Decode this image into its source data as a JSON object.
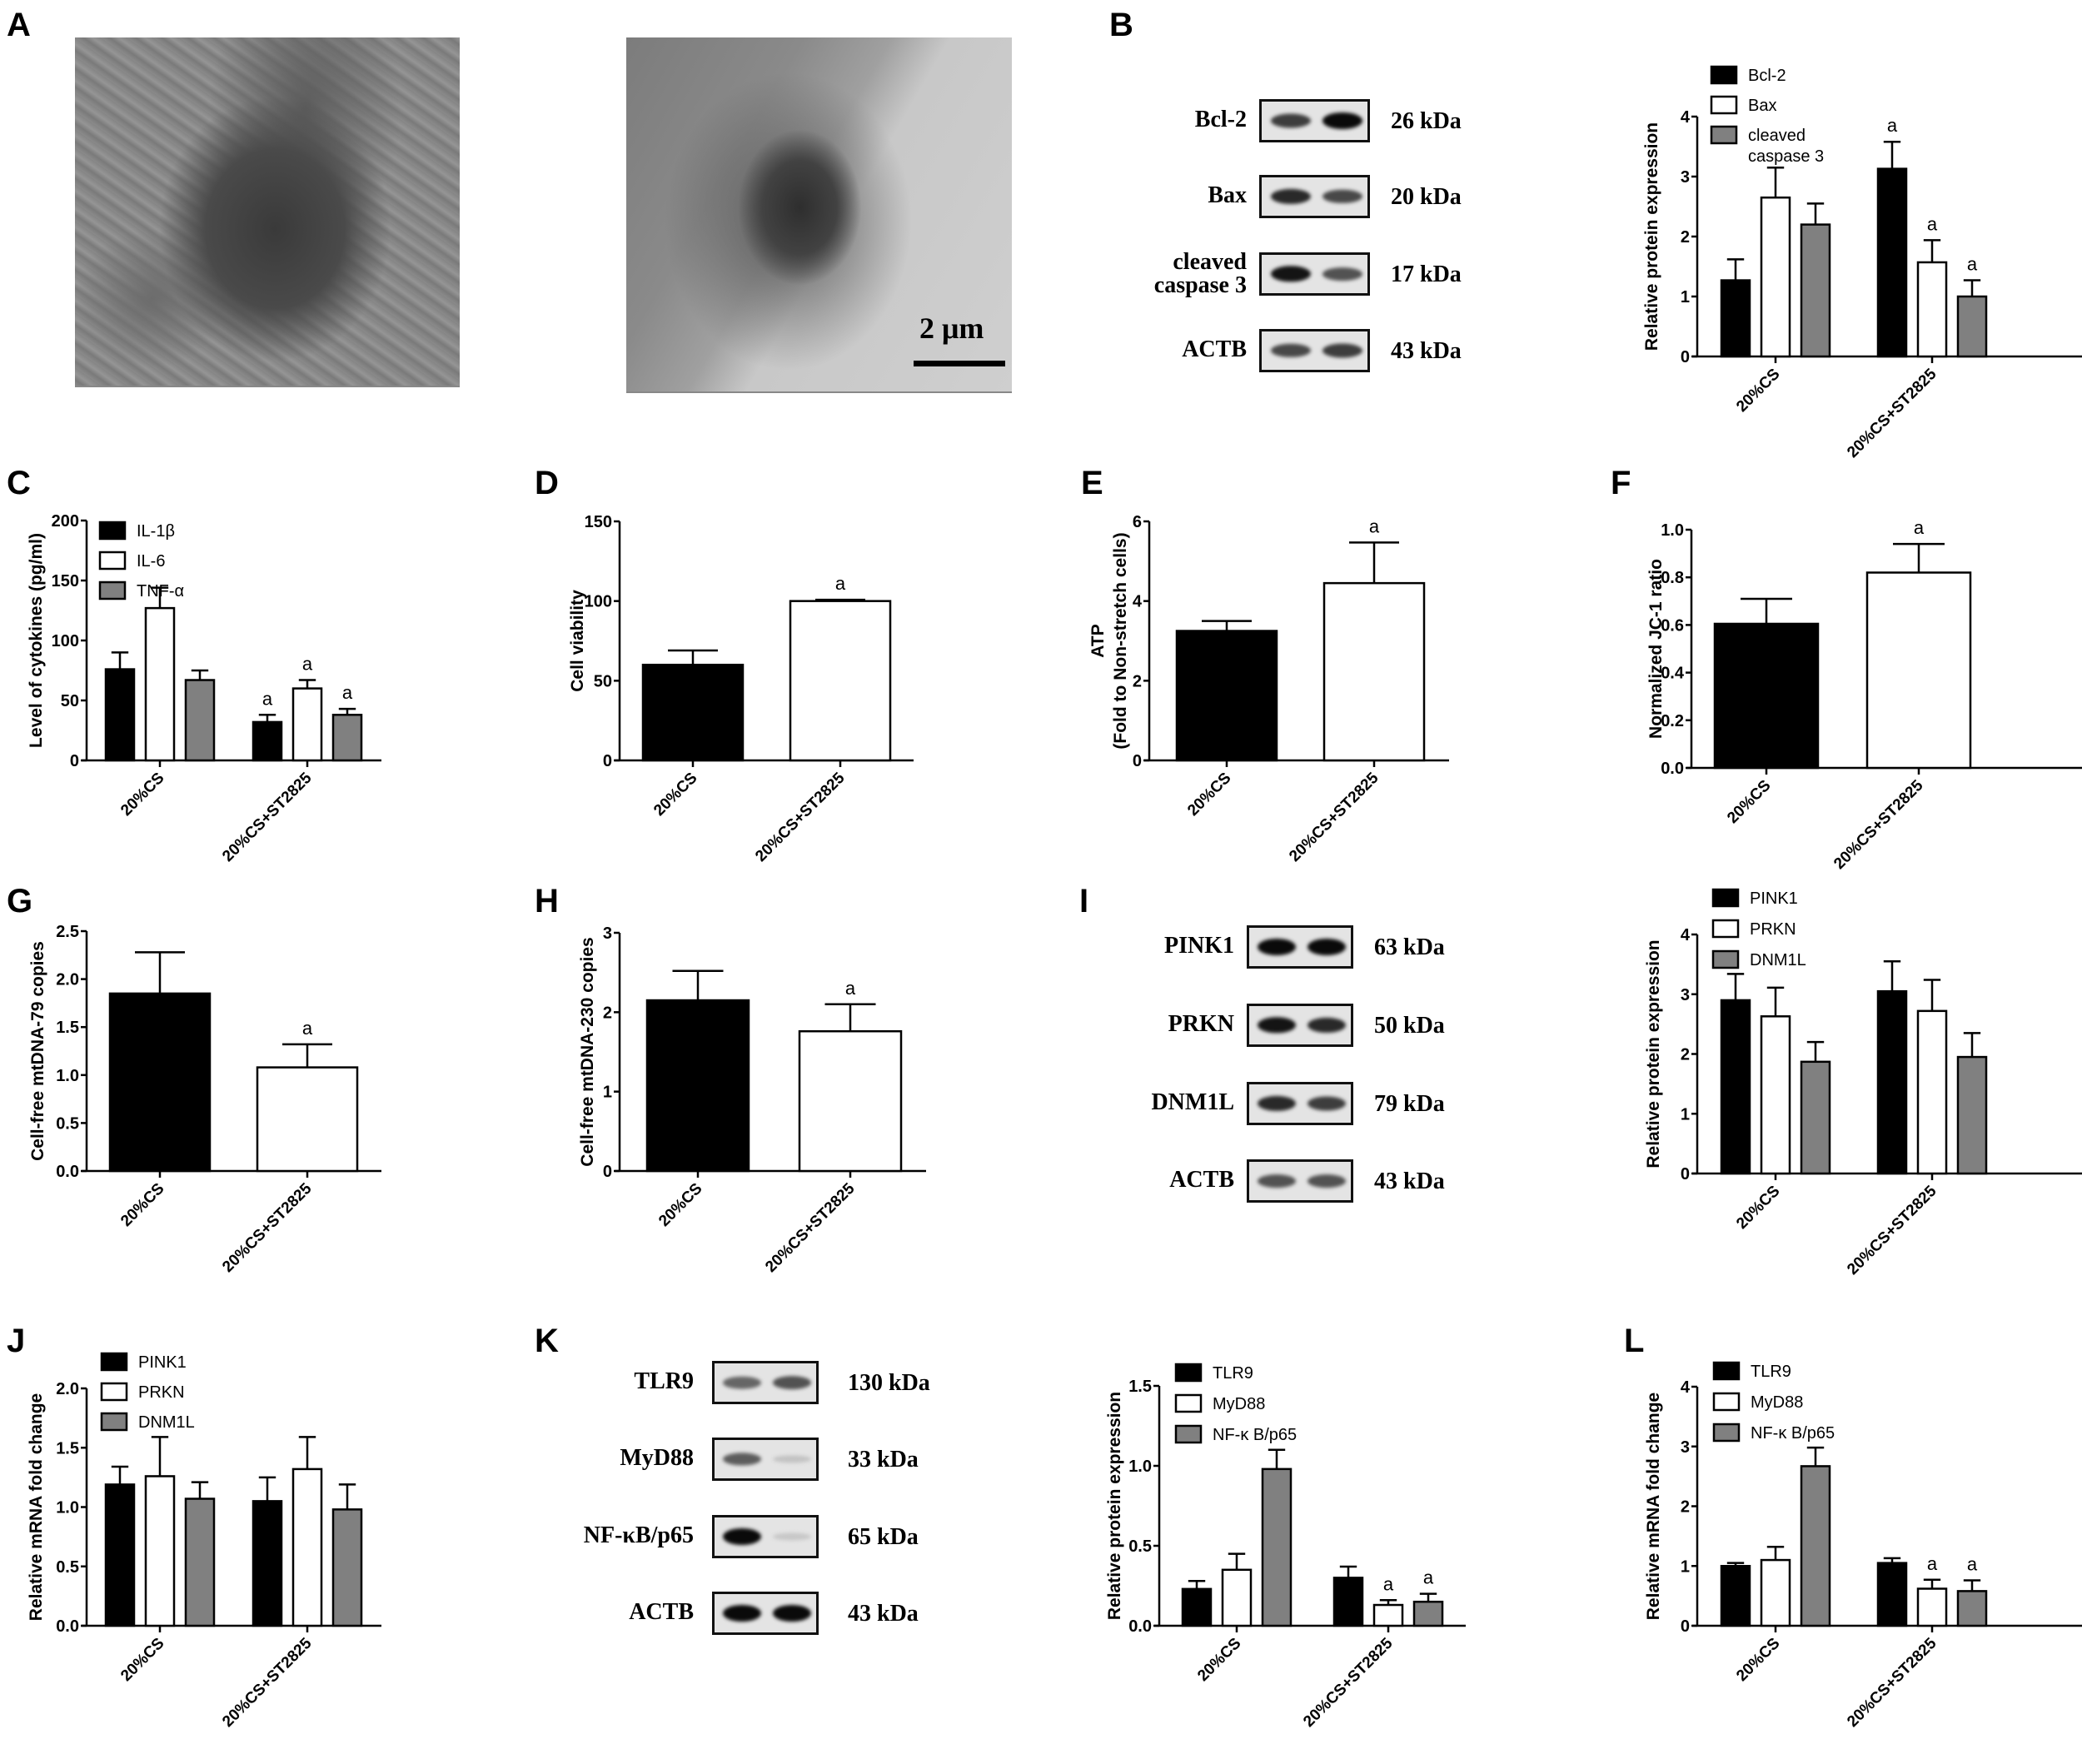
{
  "figure": {
    "panel_letters": [
      "A",
      "B",
      "C",
      "D",
      "E",
      "F",
      "G",
      "H",
      "I",
      "J",
      "K",
      "L"
    ]
  },
  "panel_a": {
    "letter": "A",
    "images": [
      {
        "name": "tem-20cs",
        "description": "Transmission electron micrograph, 20%CS group"
      },
      {
        "name": "tem-20cs-st2825",
        "description": "Transmission electron micrograph, 20%CS+ST2825 group"
      }
    ],
    "scale_bar": "2 μm"
  },
  "panel_b_blot": {
    "letter": "B",
    "rows": [
      {
        "label": "Bcl-2",
        "kda": "26 kDa",
        "bands": [
          0.75,
          1.0
        ]
      },
      {
        "label": "Bax",
        "kda": "20 kDa",
        "bands": [
          0.85,
          0.7
        ]
      },
      {
        "label": "cleaved caspase 3",
        "kda": "17 kDa",
        "bands": [
          0.95,
          0.65
        ]
      },
      {
        "label": "ACTB",
        "kda": "43 kDa",
        "bands": [
          0.7,
          0.75
        ]
      }
    ]
  },
  "panel_i_blot": {
    "letter": "I",
    "rows": [
      {
        "label": "PINK1",
        "kda": "63 kDa",
        "bands": [
          1.0,
          1.0
        ]
      },
      {
        "label": "PRKN",
        "kda": "50 kDa",
        "bands": [
          0.95,
          0.85
        ]
      },
      {
        "label": "DNM1L",
        "kda": "79 kDa",
        "bands": [
          0.85,
          0.75
        ]
      },
      {
        "label": "ACTB",
        "kda": "43 kDa",
        "bands": [
          0.65,
          0.65
        ]
      }
    ]
  },
  "panel_k_blot": {
    "letter": "K",
    "rows": [
      {
        "label": "TLR9",
        "kda": "130 kDa",
        "bands": [
          0.55,
          0.65
        ]
      },
      {
        "label": "MyD88",
        "kda": "33 kDa",
        "bands": [
          0.6,
          0.1
        ]
      },
      {
        "label": "NF-κB/p65",
        "kda": "65 kDa",
        "bands": [
          1.0,
          0.08
        ]
      },
      {
        "label": "ACTB",
        "kda": "43 kDa",
        "bands": [
          1.0,
          1.0
        ]
      }
    ]
  },
  "colors": {
    "series_black": "#000000",
    "series_white": "#ffffff",
    "series_gray": "#808080",
    "axis": "#000000"
  },
  "chart_data": [
    {
      "id": "B",
      "type": "bar",
      "title": "",
      "categories": [
        "20%CS",
        "20%CS+ST2825"
      ],
      "ylabel": "Relative protein expression",
      "xlabel": "",
      "ylim": [
        0,
        4
      ],
      "yticks": [
        "0",
        "1",
        "2",
        "3",
        "4"
      ],
      "ytick_values": [
        0,
        1,
        2,
        3,
        4
      ],
      "grid": false,
      "legend_position": "top-left",
      "series": [
        {
          "name": "Bcl-2",
          "fill": "black",
          "values": [
            1.27,
            3.13
          ],
          "errors": [
            0.35,
            0.45
          ],
          "sig": [
            "",
            "a"
          ]
        },
        {
          "name": "Bax",
          "fill": "white",
          "values": [
            2.65,
            1.57
          ],
          "errors": [
            0.5,
            0.37
          ],
          "sig": [
            "",
            "a"
          ]
        },
        {
          "name": "cleaved caspase 3",
          "fill": "gray",
          "values": [
            2.2,
            1.0
          ],
          "errors": [
            0.35,
            0.27
          ],
          "sig": [
            "",
            "a"
          ]
        }
      ]
    },
    {
      "id": "C",
      "type": "bar",
      "title": "",
      "categories": [
        "20%CS",
        "20%CS+ST2825"
      ],
      "ylabel": "Level of cytokines (pg/ml)",
      "xlabel": "",
      "ylim": [
        0,
        200
      ],
      "yticks": [
        "0",
        "50",
        "100",
        "150",
        "200"
      ],
      "ytick_values": [
        0,
        50,
        100,
        150,
        200
      ],
      "grid": false,
      "legend_position": "top-left",
      "series": [
        {
          "name": "IL-1β",
          "fill": "black",
          "values": [
            76,
            32
          ],
          "errors": [
            14,
            6
          ],
          "sig": [
            "",
            "a"
          ]
        },
        {
          "name": "IL-6",
          "fill": "white",
          "values": [
            127,
            60
          ],
          "errors": [
            17,
            7
          ],
          "sig": [
            "",
            "a"
          ]
        },
        {
          "name": "TNF-α",
          "fill": "gray",
          "values": [
            67,
            38
          ],
          "errors": [
            8,
            5
          ],
          "sig": [
            "",
            "a"
          ]
        }
      ]
    },
    {
      "id": "D",
      "type": "bar",
      "title": "",
      "categories": [
        "20%CS",
        "20%CS+ST2825"
      ],
      "ylabel": "Cell viability",
      "xlabel": "",
      "ylim": [
        0,
        150
      ],
      "yticks": [
        "0",
        "50",
        "100",
        "150"
      ],
      "ytick_values": [
        0,
        50,
        100,
        150
      ],
      "grid": false,
      "legend_position": "none",
      "series": [
        {
          "name": "",
          "fill": "per-category",
          "fills": [
            "black",
            "white"
          ],
          "values": [
            60,
            100
          ],
          "errors": [
            9,
            0.8
          ],
          "sig": [
            "",
            "a"
          ]
        }
      ]
    },
    {
      "id": "E",
      "type": "bar",
      "title": "",
      "categories": [
        "20%CS",
        "20%CS+ST2825"
      ],
      "ylabel": "ATP",
      "ylabel2": "(Fold to Non-stretch cells)",
      "xlabel": "",
      "ylim": [
        0,
        6
      ],
      "yticks": [
        "0",
        "2",
        "4",
        "6"
      ],
      "ytick_values": [
        0,
        2,
        4,
        6
      ],
      "grid": false,
      "legend_position": "none",
      "series": [
        {
          "name": "",
          "fill": "per-category",
          "fills": [
            "black",
            "white"
          ],
          "values": [
            3.25,
            4.45
          ],
          "errors": [
            0.25,
            1.02
          ],
          "sig": [
            "",
            "a"
          ]
        }
      ]
    },
    {
      "id": "F",
      "type": "bar",
      "title": "",
      "categories": [
        "20%CS",
        "20%CS+ST2825"
      ],
      "ylabel": "Normalized JC-1 ratio",
      "xlabel": "",
      "ylim": [
        0,
        1.0
      ],
      "yticks": [
        "0.0",
        "0.2",
        "0.4",
        "0.6",
        "0.8",
        "1.0"
      ],
      "ytick_values": [
        0,
        0.2,
        0.4,
        0.6,
        0.8,
        1.0
      ],
      "grid": false,
      "legend_position": "none",
      "series": [
        {
          "name": "",
          "fill": "per-category",
          "fills": [
            "black",
            "white"
          ],
          "values": [
            0.605,
            0.82
          ],
          "errors": [
            0.105,
            0.12
          ],
          "sig": [
            "",
            "a"
          ]
        }
      ]
    },
    {
      "id": "G",
      "type": "bar",
      "title": "",
      "categories": [
        "20%CS",
        "20%CS+ST2825"
      ],
      "ylabel": "Cell-free mtDNA-79 copies",
      "xlabel": "",
      "ylim": [
        0,
        2.5
      ],
      "yticks": [
        "0.0",
        "0.5",
        "1.0",
        "1.5",
        "2.0",
        "2.5"
      ],
      "ytick_values": [
        0,
        0.5,
        1.0,
        1.5,
        2.0,
        2.5
      ],
      "grid": false,
      "legend_position": "none",
      "series": [
        {
          "name": "",
          "fill": "per-category",
          "fills": [
            "black",
            "white"
          ],
          "values": [
            1.85,
            1.08
          ],
          "errors": [
            0.43,
            0.24
          ],
          "sig": [
            "",
            "a"
          ]
        }
      ]
    },
    {
      "id": "H",
      "type": "bar",
      "title": "",
      "categories": [
        "20%CS",
        "20%CS+ST2825"
      ],
      "ylabel": "Cell-free mtDNA-230 copies",
      "xlabel": "",
      "ylim": [
        0,
        3
      ],
      "yticks": [
        "0",
        "1",
        "2",
        "3"
      ],
      "ytick_values": [
        0,
        1,
        2,
        3
      ],
      "grid": false,
      "legend_position": "none",
      "series": [
        {
          "name": "",
          "fill": "per-category",
          "fills": [
            "black",
            "white"
          ],
          "values": [
            2.15,
            1.76
          ],
          "errors": [
            0.37,
            0.34
          ],
          "sig": [
            "",
            "a"
          ]
        }
      ]
    },
    {
      "id": "I",
      "type": "bar",
      "title": "",
      "categories": [
        "20%CS",
        "20%CS+ST2825"
      ],
      "ylabel": "Relative protein expression",
      "xlabel": "",
      "ylim": [
        0,
        4
      ],
      "yticks": [
        "0",
        "1",
        "2",
        "3",
        "4"
      ],
      "ytick_values": [
        0,
        1,
        2,
        3,
        4
      ],
      "grid": false,
      "legend_position": "top-left",
      "series": [
        {
          "name": "PINK1",
          "fill": "black",
          "values": [
            2.9,
            3.05
          ],
          "errors": [
            0.44,
            0.5
          ],
          "sig": [
            "",
            ""
          ]
        },
        {
          "name": "PRKN",
          "fill": "white",
          "values": [
            2.63,
            2.72
          ],
          "errors": [
            0.48,
            0.52
          ],
          "sig": [
            "",
            ""
          ]
        },
        {
          "name": "DNM1L",
          "fill": "gray",
          "values": [
            1.87,
            1.95
          ],
          "errors": [
            0.33,
            0.4
          ],
          "sig": [
            "",
            ""
          ]
        }
      ]
    },
    {
      "id": "J",
      "type": "bar",
      "title": "",
      "categories": [
        "20%CS",
        "20%CS+ST2825"
      ],
      "ylabel": "Relative mRNA fold change",
      "xlabel": "",
      "ylim": [
        0,
        2.0
      ],
      "yticks": [
        "0.0",
        "0.5",
        "1.0",
        "1.5",
        "2.0"
      ],
      "ytick_values": [
        0,
        0.5,
        1.0,
        1.5,
        2.0
      ],
      "grid": false,
      "legend_position": "top-left",
      "series": [
        {
          "name": "PINK1",
          "fill": "black",
          "values": [
            1.19,
            1.05
          ],
          "errors": [
            0.15,
            0.2
          ],
          "sig": [
            "",
            ""
          ]
        },
        {
          "name": "PRKN",
          "fill": "white",
          "values": [
            1.26,
            1.32
          ],
          "errors": [
            0.33,
            0.27
          ],
          "sig": [
            "",
            ""
          ]
        },
        {
          "name": "DNM1L",
          "fill": "gray",
          "values": [
            1.07,
            0.98
          ],
          "errors": [
            0.14,
            0.21
          ],
          "sig": [
            "",
            ""
          ]
        }
      ]
    },
    {
      "id": "K",
      "type": "bar",
      "title": "",
      "categories": [
        "20%CS",
        "20%CS+ST2825"
      ],
      "ylabel": "Relative protein expression",
      "xlabel": "",
      "ylim": [
        0,
        1.5
      ],
      "yticks": [
        "0.0",
        "0.5",
        "1.0",
        "1.5"
      ],
      "ytick_values": [
        0,
        0.5,
        1.0,
        1.5
      ],
      "grid": false,
      "legend_position": "top-left",
      "series": [
        {
          "name": "TLR9",
          "fill": "black",
          "values": [
            0.23,
            0.3
          ],
          "errors": [
            0.05,
            0.07
          ],
          "sig": [
            "",
            ""
          ]
        },
        {
          "name": "MyD88",
          "fill": "white",
          "values": [
            0.35,
            0.13
          ],
          "errors": [
            0.1,
            0.03
          ],
          "sig": [
            "",
            "a"
          ]
        },
        {
          "name": "NF-κ B/p65",
          "fill": "gray",
          "values": [
            0.98,
            0.15
          ],
          "errors": [
            0.12,
            0.05
          ],
          "sig": [
            "",
            "a"
          ]
        }
      ]
    },
    {
      "id": "L",
      "type": "bar",
      "title": "",
      "categories": [
        "20%CS",
        "20%CS+ST2825"
      ],
      "ylabel": "Relative mRNA fold change",
      "xlabel": "",
      "ylim": [
        0,
        4
      ],
      "yticks": [
        "0",
        "1",
        "2",
        "3",
        "4"
      ],
      "ytick_values": [
        0,
        1,
        2,
        3,
        4
      ],
      "grid": false,
      "legend_position": "top-left",
      "series": [
        {
          "name": "TLR9",
          "fill": "black",
          "values": [
            1.0,
            1.05
          ],
          "errors": [
            0.05,
            0.08
          ],
          "sig": [
            "",
            ""
          ]
        },
        {
          "name": "MyD88",
          "fill": "white",
          "values": [
            1.1,
            0.62
          ],
          "errors": [
            0.22,
            0.15
          ],
          "sig": [
            "",
            "a"
          ]
        },
        {
          "name": "NF-κ B/p65",
          "fill": "gray",
          "values": [
            2.67,
            0.58
          ],
          "errors": [
            0.31,
            0.18
          ],
          "sig": [
            "",
            "a"
          ]
        }
      ]
    }
  ]
}
